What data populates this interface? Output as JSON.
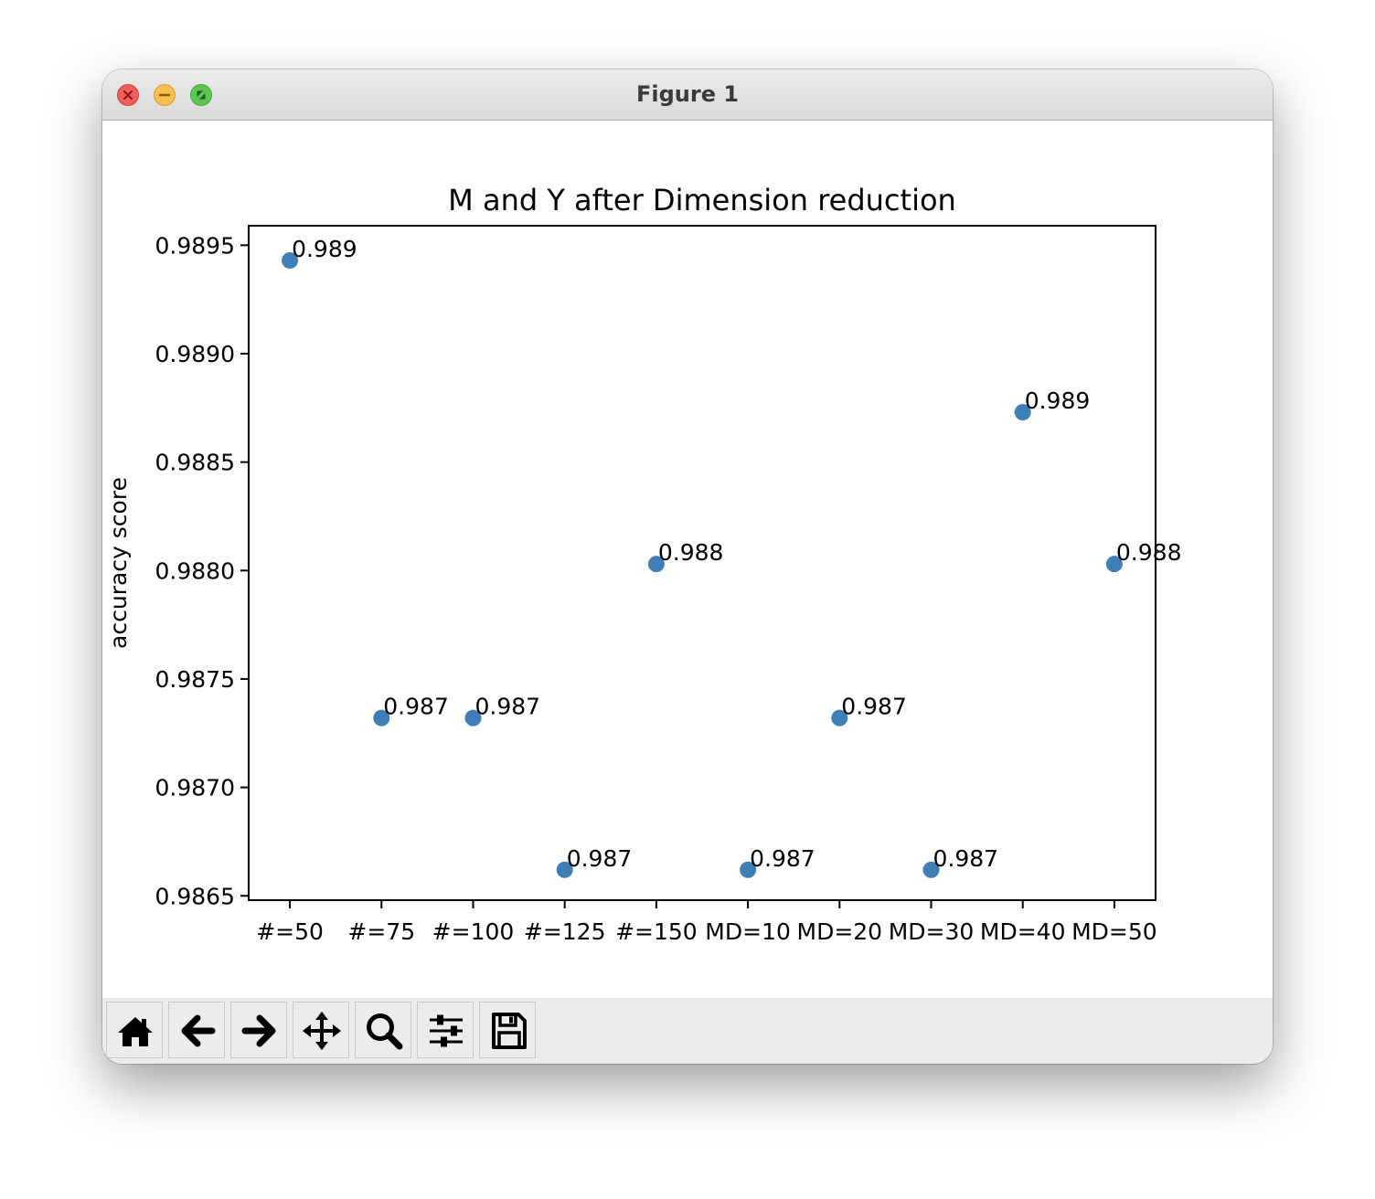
{
  "window": {
    "title": "Figure 1"
  },
  "toolbar": {
    "tools": [
      {
        "name": "home-button",
        "icon": "home-icon"
      },
      {
        "name": "back-button",
        "icon": "arrow-left-icon"
      },
      {
        "name": "forward-button",
        "icon": "arrow-right-icon"
      },
      {
        "name": "pan-button",
        "icon": "move-icon"
      },
      {
        "name": "zoom-button",
        "icon": "magnifier-icon"
      },
      {
        "name": "configure-subplots-button",
        "icon": "sliders-icon"
      },
      {
        "name": "save-button",
        "icon": "floppy-disk-icon"
      }
    ]
  },
  "colors": {
    "marker": "#3d7fb6",
    "close": "#ee5f57",
    "minimize": "#f6be4f",
    "maximize": "#5fc453"
  },
  "chart_data": {
    "type": "scatter",
    "title": "M and Y after Dimension reduction",
    "xlabel": "",
    "ylabel": "accuracy score",
    "categories": [
      "#=50",
      "#=75",
      "#=100",
      "#=125",
      "#=150",
      "MD=10",
      "MD=20",
      "MD=30",
      "MD=40",
      "MD=50"
    ],
    "values": [
      0.98943,
      0.98732,
      0.98732,
      0.98662,
      0.98803,
      0.98662,
      0.98732,
      0.98662,
      0.98873,
      0.98803
    ],
    "point_labels": [
      "0.989",
      "0.987",
      "0.987",
      "0.987",
      "0.988",
      "0.987",
      "0.987",
      "0.987",
      "0.989",
      "0.988"
    ],
    "yticks": [
      0.9865,
      0.987,
      0.9875,
      0.988,
      0.9885,
      0.989,
      0.9895
    ],
    "ytick_labels": [
      "0.9865",
      "0.9870",
      "0.9875",
      "0.9880",
      "0.9885",
      "0.9890",
      "0.9895"
    ],
    "ylim": [
      0.98648,
      0.98959
    ],
    "grid": false,
    "legend": false
  }
}
